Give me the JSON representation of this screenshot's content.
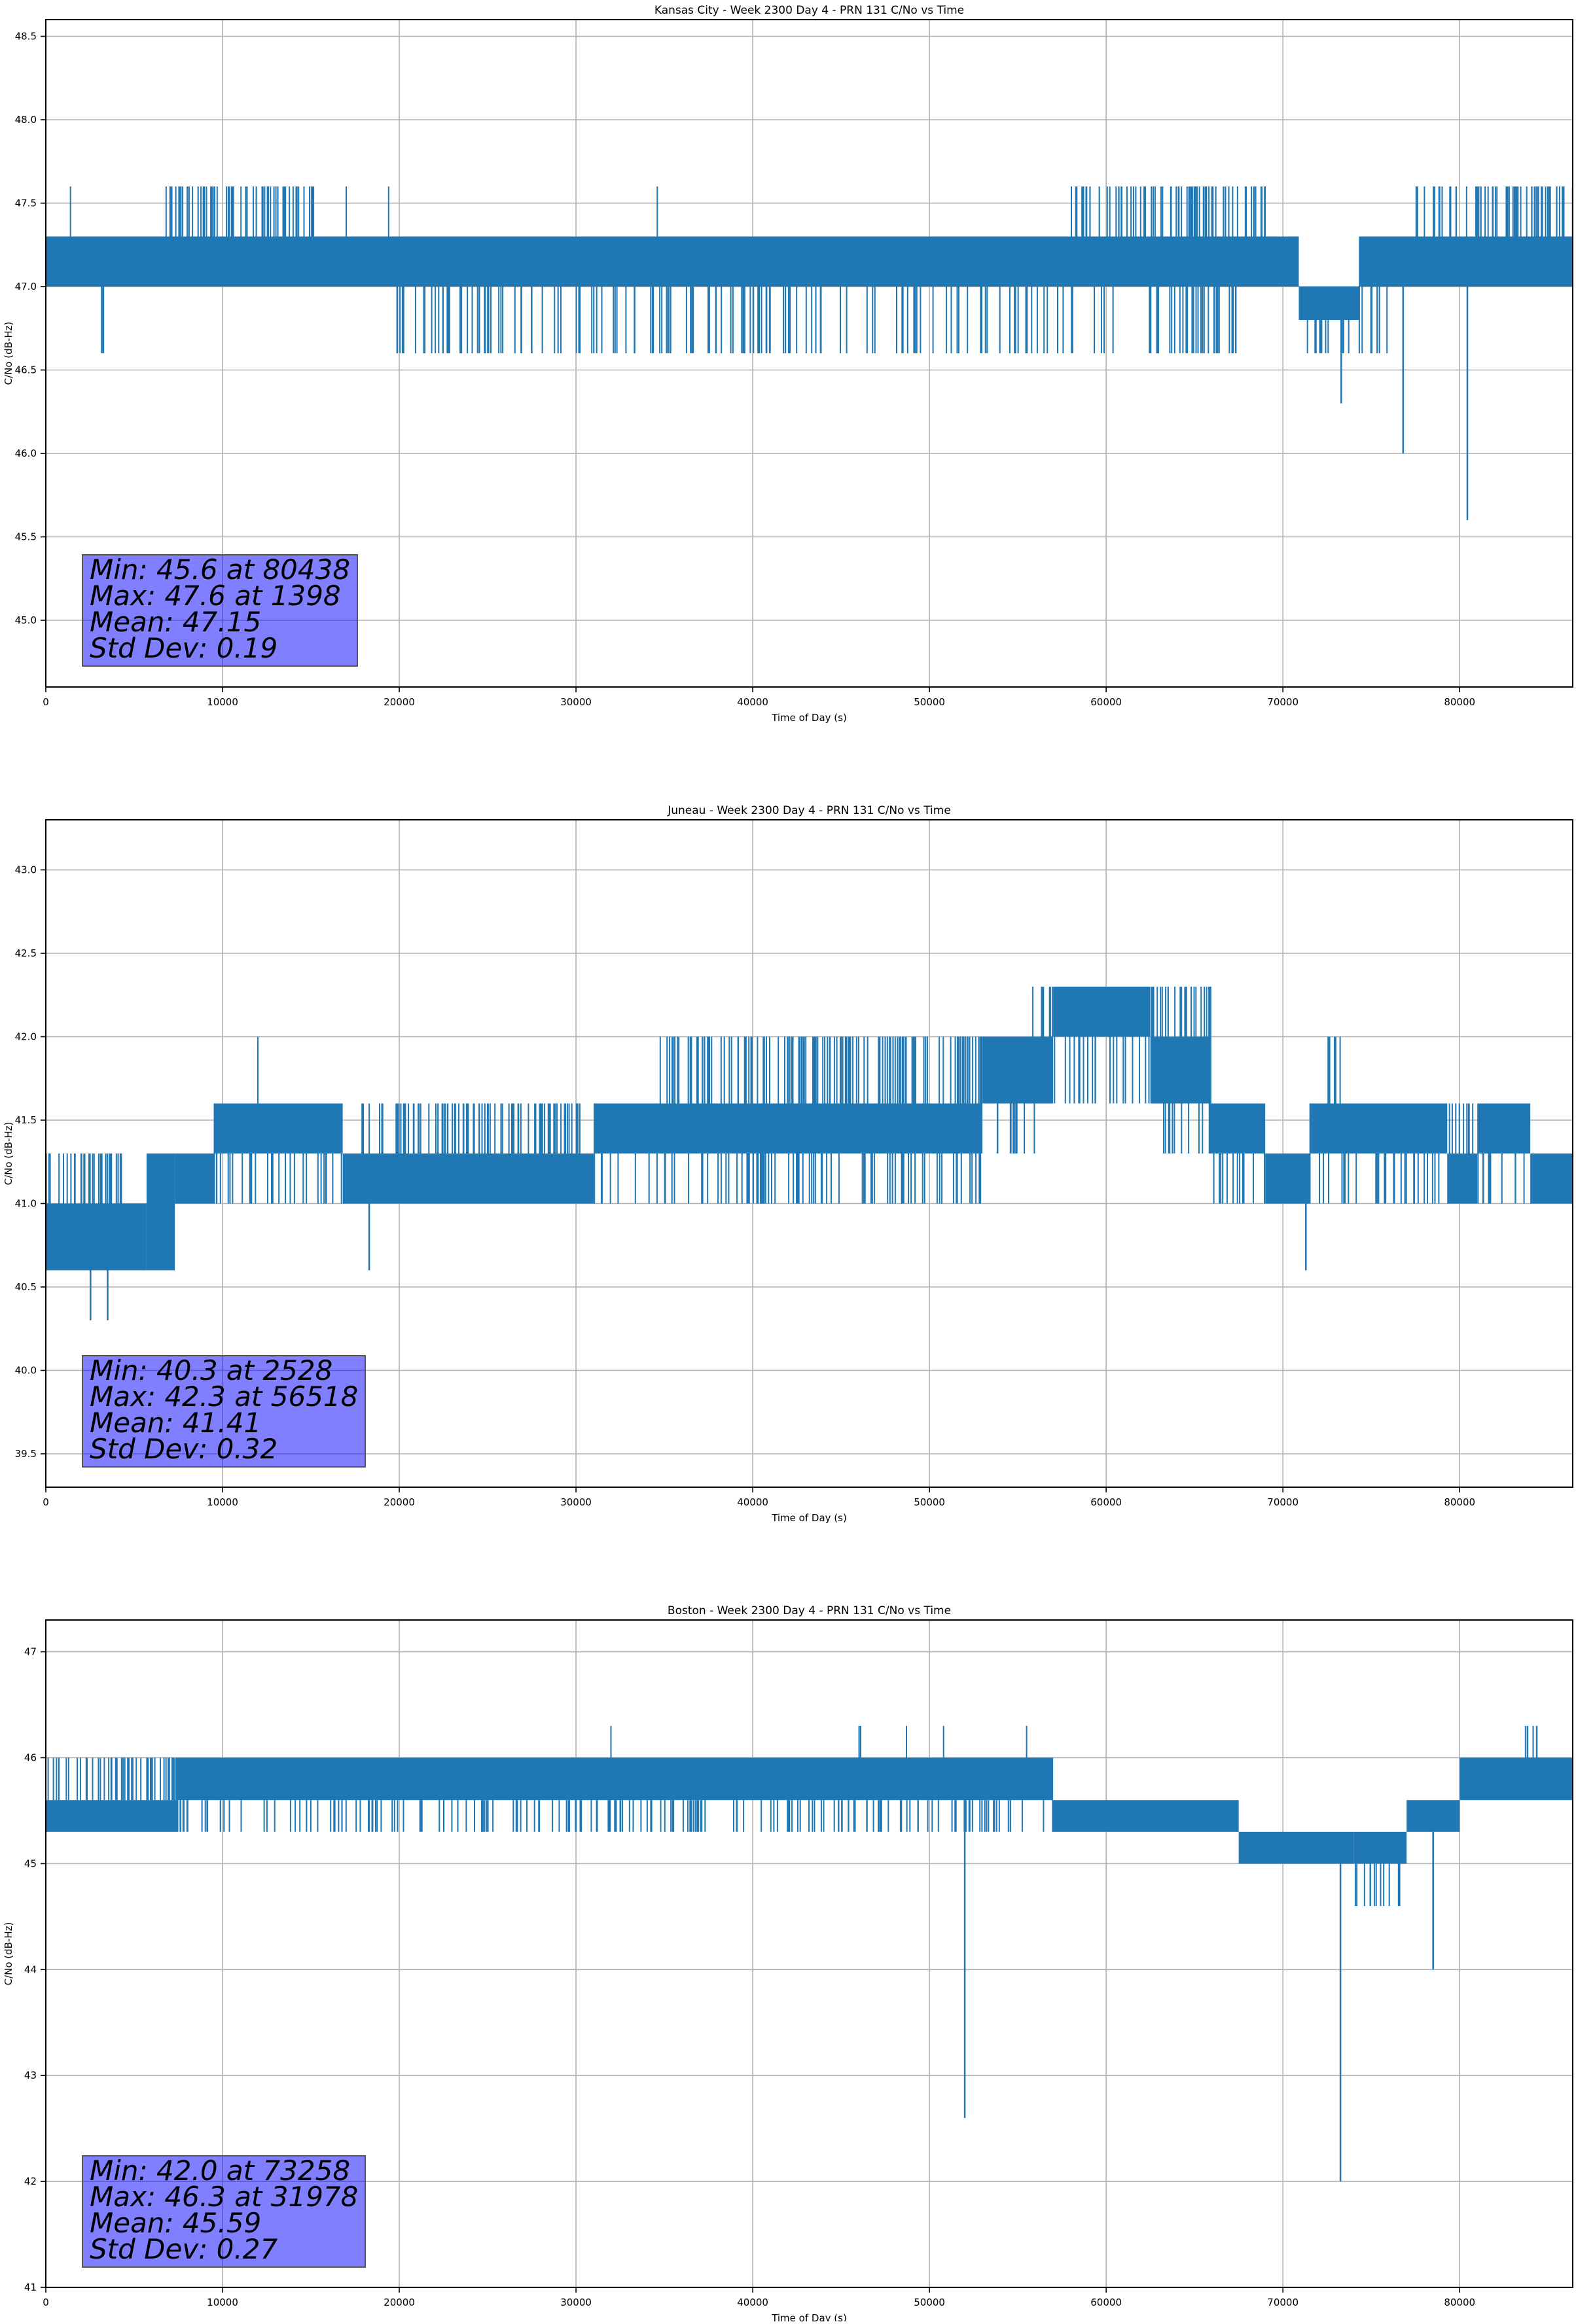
{
  "chart_data": [
    {
      "type": "line",
      "title": "Kansas City - Week 2300 Day 4 - PRN 131 C/No vs Time",
      "xlabel": "Time of Day (s)",
      "ylabel": "C/No (dB-Hz)",
      "xlim": [
        0,
        86400
      ],
      "ylim": [
        44.6,
        48.6
      ],
      "xticks": [
        0,
        10000,
        20000,
        30000,
        40000,
        50000,
        60000,
        70000,
        80000
      ],
      "yticks": [
        45.0,
        45.5,
        46.0,
        46.5,
        47.0,
        47.5,
        48.0,
        48.5
      ],
      "ytick_decimals": 1,
      "grid": true,
      "line_color": "#1f77b4",
      "stats": {
        "lines": [
          "Min: 45.6 at 80438",
          "Max: 47.6 at 1398",
          "Mean: 47.15",
          "Std Dev: 0.19"
        ]
      },
      "series": [
        {
          "bands": [
            {
              "x0": 0,
              "x1": 70900,
              "lo": 47.0,
              "hi": 47.3
            },
            {
              "x0": 70900,
              "x1": 74300,
              "lo": 46.8,
              "hi": 47.0
            },
            {
              "x0": 74300,
              "x1": 86400,
              "lo": 47.0,
              "hi": 47.3
            }
          ],
          "up_spikes": [
            {
              "x0": 6500,
              "x1": 15200,
              "to": 47.6
            },
            {
              "x0": 1398,
              "x1": 1398,
              "to": 47.6
            },
            {
              "x0": 17000,
              "x1": 17000,
              "to": 47.6
            },
            {
              "x0": 19400,
              "x1": 19400,
              "to": 47.6
            },
            {
              "x0": 58000,
              "x1": 69000,
              "to": 47.6
            },
            {
              "x0": 77500,
              "x1": 86400,
              "to": 47.6
            },
            {
              "x0": 34600,
              "x1": 34600,
              "to": 47.6
            }
          ],
          "down_spikes": [
            {
              "x0": 19800,
              "x1": 68000,
              "to": 46.6
            },
            {
              "x0": 71000,
              "x1": 76000,
              "to": 46.6
            },
            {
              "x0": 3000,
              "x1": 3400,
              "to": 46.6
            }
          ],
          "points": [
            [
              73300,
              47.0
            ],
            [
              73300,
              46.3
            ],
            [
              73300,
              47.0
            ],
            [
              76800,
              47.0
            ],
            [
              76800,
              46.0
            ],
            [
              76800,
              47.0
            ],
            [
              80438,
              47.0
            ],
            [
              80438,
              45.6
            ],
            [
              80438,
              47.0
            ]
          ]
        }
      ]
    },
    {
      "type": "line",
      "title": "Juneau - Week 2300 Day 4 - PRN 131 C/No vs Time",
      "xlabel": "Time of Day (s)",
      "ylabel": "C/No (dB-Hz)",
      "xlim": [
        0,
        86400
      ],
      "ylim": [
        39.3,
        43.3
      ],
      "xticks": [
        0,
        10000,
        20000,
        30000,
        40000,
        50000,
        60000,
        70000,
        80000
      ],
      "yticks": [
        39.5,
        40.0,
        40.5,
        41.0,
        41.5,
        42.0,
        42.5,
        43.0
      ],
      "ytick_decimals": 1,
      "grid": true,
      "line_color": "#1f77b4",
      "stats": {
        "lines": [
          "Min: 40.3 at 2528",
          "Max: 42.3 at 56518",
          "Mean: 41.41",
          "Std Dev: 0.32"
        ]
      },
      "series": [
        {
          "bands": [
            {
              "x0": 0,
              "x1": 5700,
              "lo": 40.6,
              "hi": 41.0
            },
            {
              "x0": 5700,
              "x1": 7300,
              "lo": 40.6,
              "hi": 41.3
            },
            {
              "x0": 7300,
              "x1": 9500,
              "lo": 41.0,
              "hi": 41.3
            },
            {
              "x0": 9500,
              "x1": 16800,
              "lo": 41.3,
              "hi": 41.6
            },
            {
              "x0": 16800,
              "x1": 31000,
              "lo": 41.0,
              "hi": 41.3
            },
            {
              "x0": 31000,
              "x1": 53000,
              "lo": 41.3,
              "hi": 41.6
            },
            {
              "x0": 53000,
              "x1": 57000,
              "lo": 41.6,
              "hi": 42.0
            },
            {
              "x0": 57000,
              "x1": 62500,
              "lo": 42.0,
              "hi": 42.3
            },
            {
              "x0": 62500,
              "x1": 65800,
              "lo": 41.6,
              "hi": 42.0
            },
            {
              "x0": 65800,
              "x1": 69000,
              "lo": 41.3,
              "hi": 41.6
            },
            {
              "x0": 69000,
              "x1": 71500,
              "lo": 41.0,
              "hi": 41.3
            },
            {
              "x0": 71500,
              "x1": 79300,
              "lo": 41.3,
              "hi": 41.6
            },
            {
              "x0": 79300,
              "x1": 81000,
              "lo": 41.0,
              "hi": 41.3
            },
            {
              "x0": 81000,
              "x1": 84000,
              "lo": 41.3,
              "hi": 41.6
            },
            {
              "x0": 84000,
              "x1": 86400,
              "lo": 41.0,
              "hi": 41.3
            }
          ],
          "up_spikes": [
            {
              "x0": 0,
              "x1": 4500,
              "to": 41.3
            },
            {
              "x0": 17500,
              "x1": 30500,
              "to": 41.6
            },
            {
              "x0": 34500,
              "x1": 53000,
              "to": 42.0
            },
            {
              "x0": 55800,
              "x1": 57000,
              "to": 42.3
            },
            {
              "x0": 62500,
              "x1": 66000,
              "to": 42.3
            },
            {
              "x0": 72500,
              "x1": 73500,
              "to": 42.0
            },
            {
              "x0": 79400,
              "x1": 84000,
              "to": 41.6
            },
            {
              "x0": 12000,
              "x1": 12000,
              "to": 42.0
            }
          ],
          "down_spikes": [
            {
              "x0": 9500,
              "x1": 16800,
              "to": 41.0
            },
            {
              "x0": 31000,
              "x1": 53000,
              "to": 41.0
            },
            {
              "x0": 53500,
              "x1": 56000,
              "to": 41.3
            },
            {
              "x0": 57000,
              "x1": 62500,
              "to": 41.6
            },
            {
              "x0": 63000,
              "x1": 65500,
              "to": 41.3
            },
            {
              "x0": 66000,
              "x1": 69000,
              "to": 41.0
            },
            {
              "x0": 71500,
              "x1": 79000,
              "to": 41.0
            },
            {
              "x0": 81000,
              "x1": 83800,
              "to": 41.0
            }
          ],
          "points": [
            [
              2528,
              40.6
            ],
            [
              2528,
              40.3
            ],
            [
              2528,
              40.6
            ],
            [
              3500,
              40.6
            ],
            [
              3500,
              40.3
            ],
            [
              3500,
              40.6
            ],
            [
              18300,
              41.0
            ],
            [
              18300,
              40.6
            ],
            [
              18300,
              41.0
            ],
            [
              71300,
              41.0
            ],
            [
              71300,
              40.6
            ],
            [
              71300,
              41.0
            ]
          ]
        }
      ]
    },
    {
      "type": "line",
      "title": "Boston - Week 2300 Day 4 - PRN 131 C/No vs Time",
      "xlabel": "Time of Day (s)",
      "ylabel": "C/No (dB-Hz)",
      "xlim": [
        0,
        86400
      ],
      "ylim": [
        41,
        47.3
      ],
      "xticks": [
        0,
        10000,
        20000,
        30000,
        40000,
        50000,
        60000,
        70000,
        80000
      ],
      "yticks": [
        41,
        42,
        43,
        44,
        45,
        46,
        47
      ],
      "ytick_decimals": 0,
      "grid": true,
      "line_color": "#1f77b4",
      "stats": {
        "lines": [
          "Min: 42.0 at 73258",
          "Max: 46.3 at 31978",
          "Mean: 45.59",
          "Std Dev: 0.27"
        ]
      },
      "series": [
        {
          "bands": [
            {
              "x0": 0,
              "x1": 4500,
              "lo": 45.3,
              "hi": 45.6
            },
            {
              "x0": 4500,
              "x1": 7500,
              "lo": 45.3,
              "hi": 45.6
            },
            {
              "x0": 7500,
              "x1": 57000,
              "lo": 45.6,
              "hi": 46.0
            },
            {
              "x0": 57000,
              "x1": 67500,
              "lo": 45.3,
              "hi": 45.6
            },
            {
              "x0": 67500,
              "x1": 74000,
              "lo": 45.0,
              "hi": 45.3
            },
            {
              "x0": 74000,
              "x1": 77000,
              "lo": 45.0,
              "hi": 45.3
            },
            {
              "x0": 77000,
              "x1": 80000,
              "lo": 45.3,
              "hi": 45.6
            },
            {
              "x0": 80000,
              "x1": 86400,
              "lo": 45.6,
              "hi": 46.0
            }
          ],
          "up_spikes": [
            {
              "x0": 0,
              "x1": 7500,
              "to": 46.0
            },
            {
              "x0": 57500,
              "x1": 66500,
              "to": 45.6
            },
            {
              "x0": 67800,
              "x1": 76000,
              "to": 45.3
            },
            {
              "x0": 78000,
              "x1": 79800,
              "to": 45.6
            },
            {
              "x0": 31978,
              "x1": 31978,
              "to": 46.3
            },
            {
              "x0": 46000,
              "x1": 46200,
              "to": 46.3
            },
            {
              "x0": 48700,
              "x1": 48700,
              "to": 46.3
            },
            {
              "x0": 50800,
              "x1": 50800,
              "to": 46.3
            },
            {
              "x0": 55500,
              "x1": 55500,
              "to": 46.3
            },
            {
              "x0": 83500,
              "x1": 84500,
              "to": 46.3
            }
          ],
          "down_spikes": [
            {
              "x0": 7500,
              "x1": 57000,
              "to": 45.3
            },
            {
              "x0": 67500,
              "x1": 71000,
              "to": 45.0
            },
            {
              "x0": 74000,
              "x1": 77000,
              "to": 44.6
            },
            {
              "x0": 80000,
              "x1": 80500,
              "to": 45.6
            }
          ],
          "points": [
            [
              52000,
              45.6
            ],
            [
              52000,
              42.6
            ],
            [
              52000,
              45.6
            ],
            [
              73258,
              45.0
            ],
            [
              73258,
              42.0
            ],
            [
              73258,
              45.0
            ],
            [
              78500,
              45.3
            ],
            [
              78500,
              44.0
            ],
            [
              78500,
              45.3
            ]
          ]
        }
      ]
    }
  ]
}
